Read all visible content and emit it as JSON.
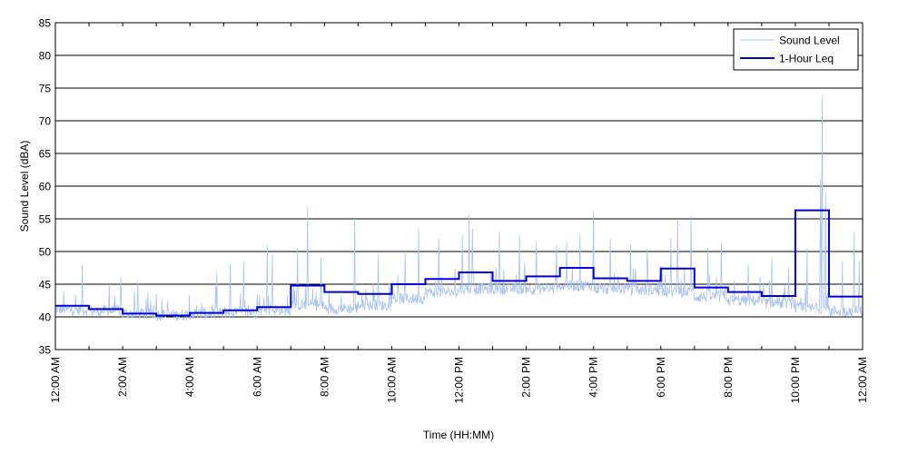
{
  "chart_data": {
    "type": "line",
    "xlabel": "Time (HH:MM)",
    "ylabel": "Sound Level (dBA)",
    "ylim": [
      35,
      85
    ],
    "xlim_hours": [
      0,
      24
    ],
    "grid": "horizontal",
    "legend_position": "top-right",
    "y_ticks": [
      35,
      40,
      45,
      50,
      55,
      60,
      65,
      70,
      75,
      80,
      85
    ],
    "x_ticks": [
      {
        "hour": 0,
        "label": "12:00 AM"
      },
      {
        "hour": 2,
        "label": "2:00 AM"
      },
      {
        "hour": 4,
        "label": "4:00 AM"
      },
      {
        "hour": 6,
        "label": "6:00 AM"
      },
      {
        "hour": 8,
        "label": "8:00 AM"
      },
      {
        "hour": 10,
        "label": "10:00 AM"
      },
      {
        "hour": 12,
        "label": "12:00 PM"
      },
      {
        "hour": 14,
        "label": "2:00 PM"
      },
      {
        "hour": 16,
        "label": "4:00 PM"
      },
      {
        "hour": 18,
        "label": "6:00 PM"
      },
      {
        "hour": 20,
        "label": "8:00 PM"
      },
      {
        "hour": 22,
        "label": "10:00 PM"
      },
      {
        "hour": 24,
        "label": "12:00 AM"
      }
    ],
    "series": [
      {
        "name": "Sound Level",
        "color": "#a9c2f2",
        "style": "thin-line",
        "hourly_base": [
          40.8,
          40.6,
          40.2,
          40.0,
          40.2,
          40.4,
          40.8,
          41.5,
          41.0,
          41.5,
          42.5,
          43.5,
          44.0,
          44.0,
          44.0,
          44.5,
          44.0,
          43.8,
          43.5,
          42.8,
          42.2,
          41.8,
          41.0,
          40.6
        ],
        "peaks": [
          [
            0.25,
            44.0
          ],
          [
            0.8,
            48.0
          ],
          [
            1.6,
            45.0
          ],
          [
            1.95,
            46.0
          ],
          [
            2.45,
            45.5
          ],
          [
            4.35,
            42.0
          ],
          [
            4.8,
            46.8
          ],
          [
            5.2,
            48.2
          ],
          [
            5.6,
            48.5
          ],
          [
            6.3,
            51.0
          ],
          [
            6.45,
            49.5
          ],
          [
            7.2,
            50.5
          ],
          [
            7.5,
            56.8
          ],
          [
            7.9,
            49.0
          ],
          [
            8.9,
            55.0
          ],
          [
            9.6,
            49.5
          ],
          [
            10.4,
            50.0
          ],
          [
            10.8,
            53.5
          ],
          [
            11.4,
            52.0
          ],
          [
            12.1,
            52.5
          ],
          [
            12.3,
            55.5
          ],
          [
            12.4,
            53.5
          ],
          [
            13.2,
            53.0
          ],
          [
            13.8,
            52.5
          ],
          [
            14.3,
            51.5
          ],
          [
            14.9,
            51.0
          ],
          [
            15.2,
            51.5
          ],
          [
            15.6,
            52.5
          ],
          [
            16.0,
            56.2
          ],
          [
            16.5,
            52.0
          ],
          [
            17.1,
            51.0
          ],
          [
            17.6,
            50.5
          ],
          [
            18.3,
            52.0
          ],
          [
            18.5,
            55.0
          ],
          [
            18.9,
            55.5
          ],
          [
            19.4,
            50.5
          ],
          [
            19.8,
            51.5
          ],
          [
            20.6,
            48.0
          ],
          [
            21.3,
            49.0
          ],
          [
            21.8,
            47.5
          ],
          [
            22.35,
            50.5
          ],
          [
            22.75,
            61.0
          ],
          [
            22.8,
            73.8
          ],
          [
            22.9,
            59.0
          ],
          [
            23.4,
            48.5
          ],
          [
            23.75,
            53.0
          ],
          [
            23.9,
            48.5
          ]
        ]
      },
      {
        "name": "1-Hour Leq",
        "color": "#0000dd",
        "style": "step",
        "hourly_values": [
          41.7,
          41.2,
          40.5,
          40.2,
          40.6,
          41.0,
          41.5,
          44.8,
          43.8,
          43.5,
          45.0,
          45.8,
          46.8,
          45.5,
          46.2,
          47.5,
          45.9,
          45.5,
          47.4,
          44.5,
          43.8,
          43.2,
          56.3,
          43.1
        ]
      }
    ]
  }
}
